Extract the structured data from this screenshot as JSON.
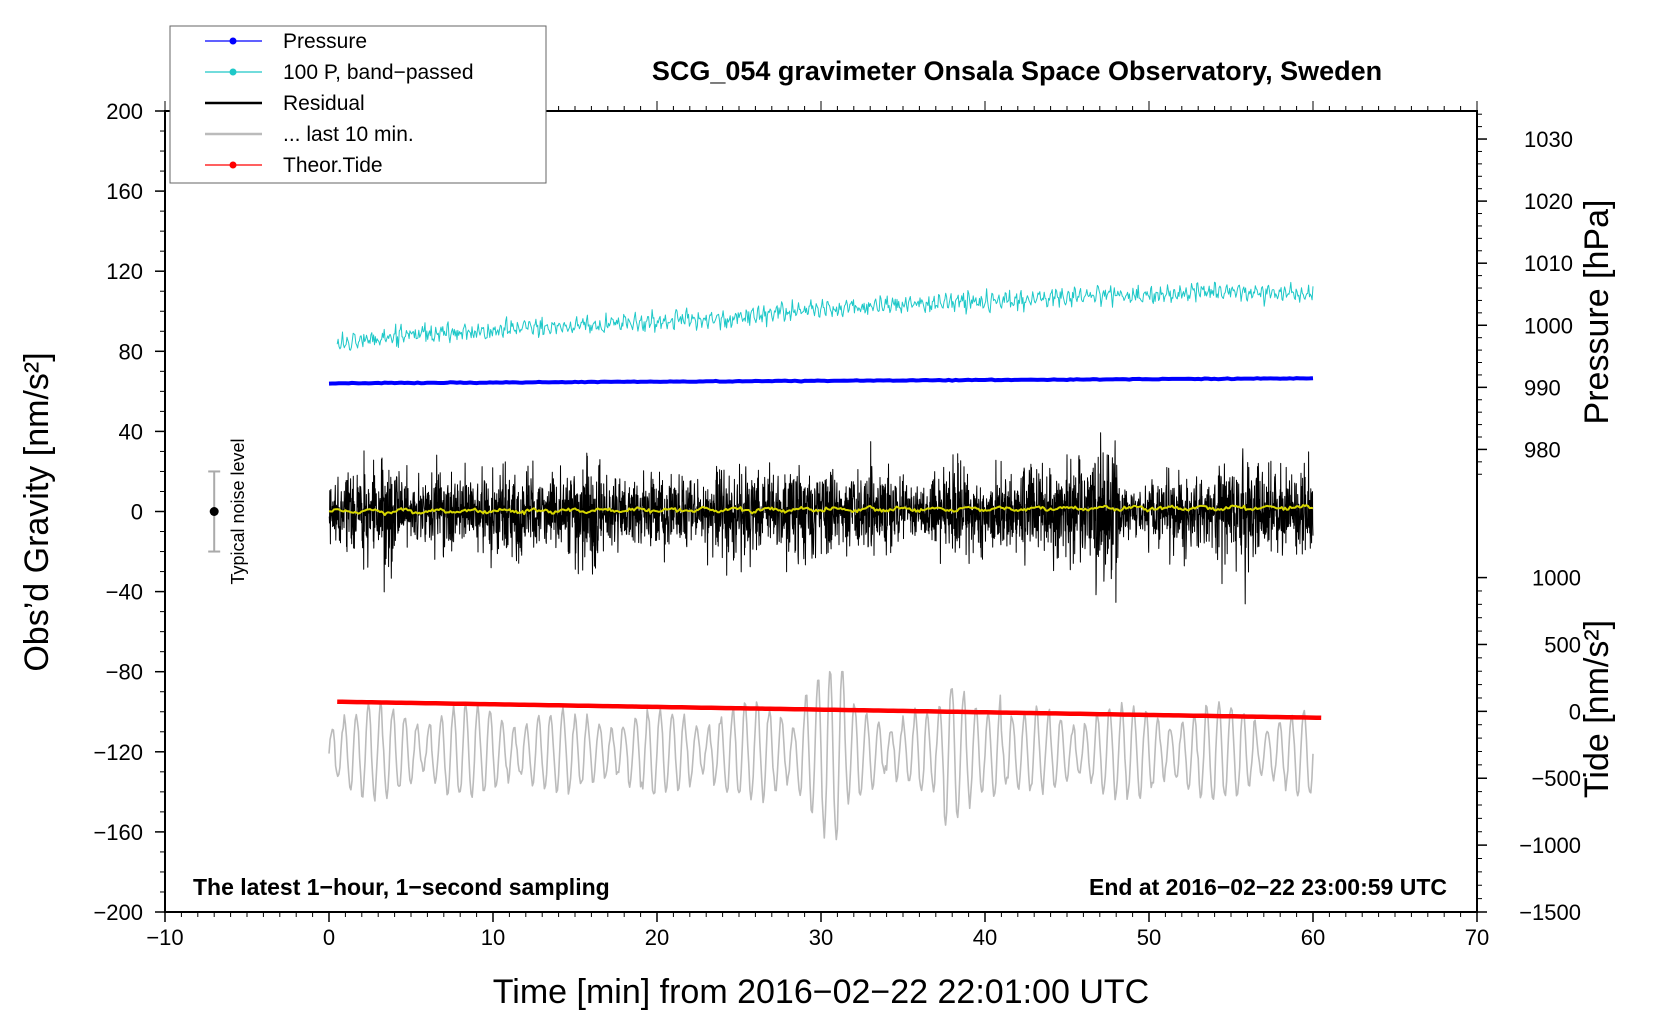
{
  "chart_data": {
    "type": "line",
    "title": "SCG_054 gravimeter Onsala Space Observatory, Sweden",
    "xlabel": "Time [min] from 2016−02−22 22:01:00 UTC",
    "ylabel_left": "Obs’d Gravity [nm/s²]",
    "ylabel_right_top": "Pressure [hPa]",
    "ylabel_right_bottom": "Tide [nm/s²]",
    "xlim": [
      -10,
      70
    ],
    "ylim": [
      -200,
      200
    ],
    "x_ticks": [
      -10,
      0,
      10,
      20,
      30,
      40,
      50,
      60,
      70
    ],
    "x_tick_labels": [
      "−10",
      "0",
      "10",
      "20",
      "30",
      "40",
      "50",
      "60",
      "70"
    ],
    "y_ticks": [
      -200,
      -160,
      -120,
      -80,
      -40,
      0,
      40,
      80,
      120,
      160,
      200
    ],
    "y_tick_labels": [
      "−200",
      "−160",
      "−120",
      "−80",
      "−40",
      "0",
      "40",
      "80",
      "120",
      "160",
      "200"
    ],
    "pressure_axis": {
      "ticks": [
        980,
        990,
        1000,
        1010,
        1020,
        1030
      ],
      "tick_labels": [
        "980",
        "990",
        "1000",
        "1010",
        "1020",
        "1030"
      ],
      "map": {
        "hpa": [
          990,
          1030
        ],
        "gravity": [
          62,
          186
        ]
      }
    },
    "tide_axis": {
      "ticks": [
        -1500,
        -1000,
        -500,
        0,
        500,
        1000
      ],
      "tick_labels": [
        "−1500",
        "−1000",
        "−500",
        "0",
        "500",
        "1000"
      ],
      "map": {
        "tide": [
          -1500,
          1000
        ],
        "gravity": [
          -200,
          -33
        ]
      }
    },
    "legend": [
      {
        "label": "Pressure",
        "color": "#0000ff",
        "marker": true
      },
      {
        "label": "100 P, band−passed",
        "color": "#1ec8c8",
        "marker": true
      },
      {
        "label": "Residual",
        "color": "#000000",
        "marker": false
      },
      {
        "label": "... last 10 min.",
        "color": "#bbbbbb",
        "marker": false
      },
      {
        "label": "Theor.Tide",
        "color": "#ff0000",
        "marker": true
      }
    ],
    "series": [
      {
        "name": "Pressure",
        "color": "#0000ff",
        "x_range": [
          0,
          60
        ],
        "y_start": 64,
        "y_end": 66.5
      },
      {
        "name": "100 P, band−passed",
        "color": "#1ec8c8",
        "x_range": [
          0.5,
          60
        ],
        "trend": [
          [
            0.5,
            84
          ],
          [
            5,
            88
          ],
          [
            15,
            93
          ],
          [
            25,
            97
          ],
          [
            30,
            101
          ],
          [
            36,
            104
          ],
          [
            45,
            107
          ],
          [
            55,
            110
          ],
          [
            60,
            108
          ]
        ],
        "noise_amplitude": 3.5
      },
      {
        "name": "Residual",
        "color": "#000000",
        "x_range": [
          0,
          60
        ],
        "y_center": 0,
        "typical_amplitude": 15,
        "max": 54,
        "min": -58
      },
      {
        "name": "smoothed residual",
        "color": "#d6d600",
        "x_range": [
          0,
          60
        ],
        "y_start": 0,
        "y_end": 2
      },
      {
        "name": "... last 10 min.",
        "color": "#bbbbbb",
        "x_range": [
          0,
          60
        ],
        "y_center": -120,
        "typical_amplitude": 22,
        "max": -80,
        "min": -166
      },
      {
        "name": "Theor.Tide",
        "color": "#ff0000",
        "x_range": [
          0.5,
          60.5
        ],
        "y_start": -95,
        "y_end": -103
      }
    ],
    "noise_bar": {
      "x": -7,
      "y_center": 0,
      "half_height": 20,
      "label": "Typical noise level"
    },
    "annotation_left": "The latest 1−hour, 1−second sampling",
    "annotation_right": "End at 2016−02−22 23:00:59 UTC"
  }
}
